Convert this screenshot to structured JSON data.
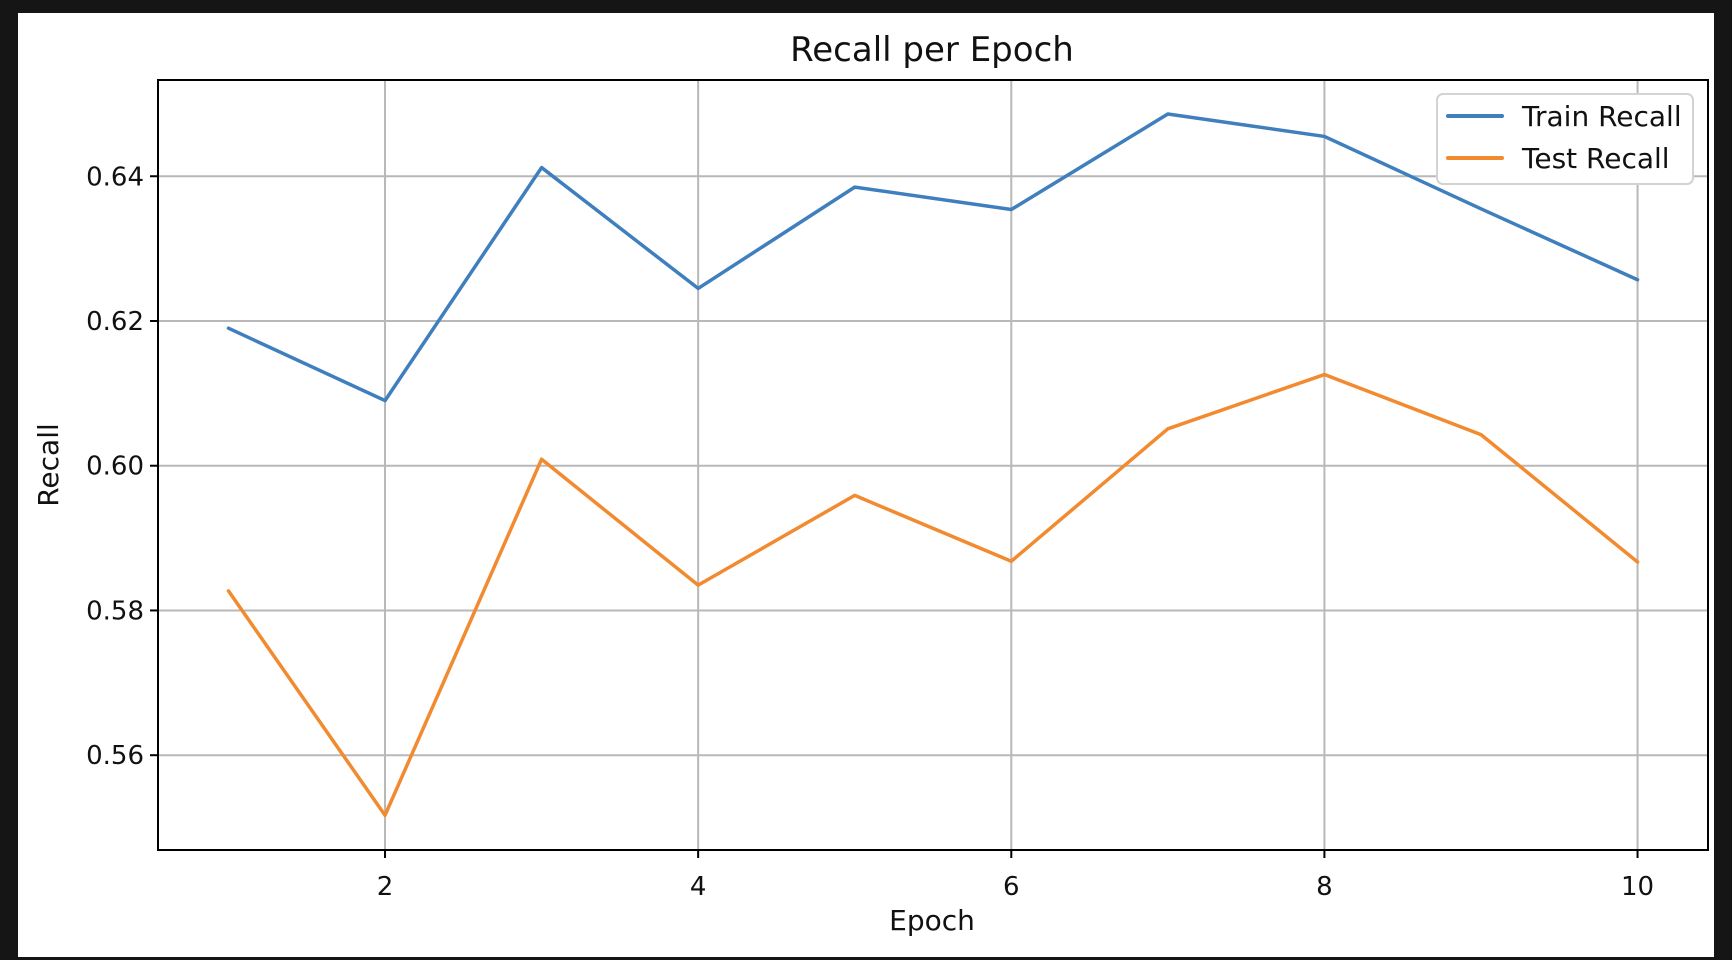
{
  "chart_data": {
    "type": "line",
    "title": "Recall per Epoch",
    "xlabel": "Epoch",
    "ylabel": "Recall",
    "x": [
      1,
      2,
      3,
      4,
      5,
      6,
      7,
      8,
      9,
      10
    ],
    "xlim": [
      0.55,
      10.45
    ],
    "ylim": [
      0.5469,
      0.6533
    ],
    "xticks": [
      2,
      4,
      6,
      8,
      10
    ],
    "yticks": [
      0.56,
      0.58,
      0.6,
      0.62,
      0.64
    ],
    "xtick_labels": [
      "2",
      "4",
      "6",
      "8",
      "10"
    ],
    "ytick_labels": [
      "0.56",
      "0.58",
      "0.60",
      "0.62",
      "0.64"
    ],
    "grid": true,
    "legend_position": "top-right",
    "series": [
      {
        "name": "Train Recall",
        "color": "#3f7fbd",
        "values": [
          0.619,
          0.609,
          0.6412,
          0.6245,
          0.6385,
          0.6354,
          0.6486,
          0.6455,
          0.6355,
          0.6257
        ]
      },
      {
        "name": "Test Recall",
        "color": "#f28a2f",
        "values": [
          0.5827,
          0.5517,
          0.6009,
          0.5835,
          0.5959,
          0.5868,
          0.6051,
          0.6126,
          0.6043,
          0.5867
        ]
      }
    ]
  }
}
